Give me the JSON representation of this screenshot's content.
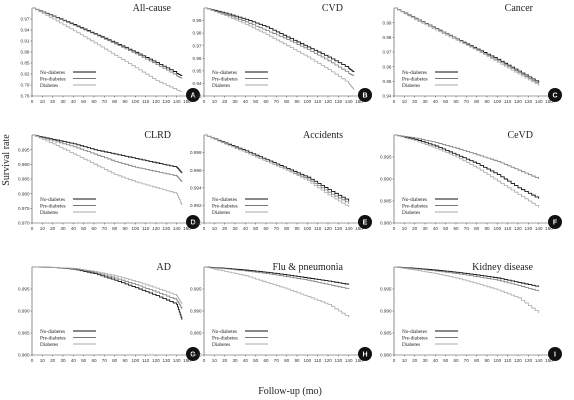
{
  "figure": {
    "ylabel": "Survival rate",
    "xlabel": "Follow-up (mo)"
  },
  "colors": {
    "no_diabetes": "#111111",
    "pre_diabetes": "#777777",
    "diabetes": "#a8a8a8",
    "badge": "#111111",
    "axis": "#444444"
  },
  "chart_data": [
    {
      "type": "line",
      "letter": "A",
      "title": "All-cause",
      "xlim": [
        0,
        150
      ],
      "xticks": [
        0,
        10,
        20,
        30,
        40,
        50,
        60,
        70,
        80,
        90,
        100,
        110,
        120,
        130,
        140,
        150
      ],
      "ylim": [
        0.76,
        1.0
      ],
      "yticks": [
        "0.97",
        "0.94",
        "0.91",
        "0.88",
        "0.85",
        "0.82",
        "0.79",
        "0.76"
      ],
      "ytick_values": [
        0.97,
        0.94,
        0.91,
        0.88,
        0.85,
        0.82,
        0.79,
        0.76
      ],
      "legend": [
        "No-diabetes",
        "Pre-diabetes",
        "Diabetes"
      ],
      "series": [
        {
          "name": "No-diabetes",
          "x": [
            0,
            20,
            40,
            60,
            80,
            100,
            120,
            140,
            145
          ],
          "y": [
            1.0,
            0.978,
            0.955,
            0.93,
            0.905,
            0.879,
            0.851,
            0.822,
            0.815
          ]
        },
        {
          "name": "Pre-diabetes",
          "x": [
            0,
            20,
            40,
            60,
            80,
            100,
            120,
            140,
            145
          ],
          "y": [
            1.0,
            0.977,
            0.953,
            0.928,
            0.902,
            0.875,
            0.846,
            0.815,
            0.808
          ]
        },
        {
          "name": "Diabetes",
          "x": [
            0,
            20,
            40,
            60,
            80,
            100,
            120,
            140,
            145
          ],
          "y": [
            1.0,
            0.97,
            0.938,
            0.905,
            0.871,
            0.837,
            0.802,
            0.776,
            0.772
          ]
        }
      ]
    },
    {
      "type": "line",
      "letter": "B",
      "title": "CVD",
      "xlim": [
        0,
        150
      ],
      "xticks": [
        0,
        10,
        20,
        30,
        40,
        50,
        60,
        70,
        80,
        90,
        100,
        110,
        120,
        130,
        140,
        150
      ],
      "ylim": [
        0.93,
        1.0
      ],
      "yticks": [
        "0.99",
        "0.98",
        "0.97",
        "0.96",
        "0.95",
        "0.94",
        "0.93"
      ],
      "ytick_values": [
        0.99,
        0.98,
        0.97,
        0.96,
        0.95,
        0.94,
        0.93
      ],
      "legend": [
        "No-diabetes",
        "Pre-diabetes",
        "Diabetes"
      ],
      "series": [
        {
          "name": "No-diabetes",
          "x": [
            0,
            20,
            40,
            60,
            80,
            100,
            120,
            140,
            145
          ],
          "y": [
            1.0,
            0.996,
            0.991,
            0.985,
            0.977,
            0.969,
            0.961,
            0.952,
            0.949
          ]
        },
        {
          "name": "Pre-diabetes",
          "x": [
            0,
            20,
            40,
            60,
            80,
            100,
            120,
            140,
            145
          ],
          "y": [
            1.0,
            0.995,
            0.989,
            0.982,
            0.975,
            0.967,
            0.958,
            0.948,
            0.946
          ]
        },
        {
          "name": "Diabetes",
          "x": [
            0,
            20,
            40,
            60,
            80,
            100,
            120,
            140,
            145
          ],
          "y": [
            1.0,
            0.994,
            0.987,
            0.979,
            0.97,
            0.961,
            0.951,
            0.94,
            0.935
          ]
        }
      ]
    },
    {
      "type": "line",
      "letter": "C",
      "title": "Cancer",
      "xlim": [
        0,
        150
      ],
      "xticks": [
        0,
        10,
        20,
        30,
        40,
        50,
        60,
        70,
        80,
        90,
        100,
        110,
        120,
        130,
        140,
        150
      ],
      "ylim": [
        0.94,
        1.0
      ],
      "yticks": [
        "0.99",
        "0.98",
        "0.97",
        "0.96",
        "0.95",
        "0.94"
      ],
      "ytick_values": [
        0.99,
        0.98,
        0.97,
        0.96,
        0.95,
        0.94
      ],
      "legend": [
        "No-diabetes",
        "Pre-diabetes",
        "Diabetes"
      ],
      "series": [
        {
          "name": "No-diabetes",
          "x": [
            0,
            20,
            40,
            60,
            80,
            100,
            120,
            140
          ],
          "y": [
            1.0,
            0.993,
            0.986,
            0.979,
            0.972,
            0.965,
            0.957,
            0.949
          ]
        },
        {
          "name": "Pre-diabetes",
          "x": [
            0,
            20,
            40,
            60,
            80,
            100,
            120,
            140
          ],
          "y": [
            1.0,
            0.993,
            0.986,
            0.979,
            0.971,
            0.964,
            0.956,
            0.948
          ]
        },
        {
          "name": "Diabetes",
          "x": [
            0,
            20,
            40,
            60,
            80,
            100,
            120,
            140
          ],
          "y": [
            1.0,
            0.992,
            0.985,
            0.978,
            0.971,
            0.963,
            0.955,
            0.947
          ]
        }
      ]
    },
    {
      "type": "line",
      "letter": "D",
      "title": "CLRD",
      "xlim": [
        0,
        150
      ],
      "xticks": [
        0,
        10,
        20,
        30,
        40,
        50,
        60,
        70,
        80,
        90,
        100,
        110,
        120,
        130,
        140,
        150
      ],
      "ylim": [
        0.97,
        1.0
      ],
      "yticks": [
        "0.995",
        "0.990",
        "0.985",
        "0.980",
        "0.975",
        "0.970"
      ],
      "ytick_values": [
        0.995,
        0.99,
        0.985,
        0.98,
        0.975,
        0.97
      ],
      "legend": [
        "No-diabetes",
        "Pre-diabetes",
        "Diabetes"
      ],
      "series": [
        {
          "name": "No-diabetes",
          "x": [
            0,
            20,
            40,
            60,
            80,
            100,
            120,
            140,
            145
          ],
          "y": [
            1.0,
            0.9985,
            0.997,
            0.995,
            0.9935,
            0.992,
            0.9905,
            0.989,
            0.987
          ]
        },
        {
          "name": "Pre-diabetes",
          "x": [
            0,
            20,
            40,
            60,
            80,
            100,
            120,
            140,
            145
          ],
          "y": [
            1.0,
            0.998,
            0.996,
            0.9935,
            0.991,
            0.989,
            0.9875,
            0.986,
            0.984
          ]
        },
        {
          "name": "Diabetes",
          "x": [
            0,
            20,
            40,
            60,
            80,
            100,
            120,
            140,
            145
          ],
          "y": [
            1.0,
            0.997,
            0.9935,
            0.99,
            0.9865,
            0.984,
            0.982,
            0.98,
            0.976
          ]
        }
      ]
    },
    {
      "type": "line",
      "letter": "E",
      "title": "Accidents",
      "xlim": [
        0,
        150
      ],
      "xticks": [
        0,
        10,
        20,
        30,
        40,
        50,
        60,
        70,
        80,
        90,
        100,
        110,
        120,
        130,
        140,
        150
      ],
      "ylim": [
        0.99,
        1.0
      ],
      "yticks": [
        "0.998",
        "0.996",
        "0.994",
        "0.992",
        "0.990"
      ],
      "ytick_values": [
        0.998,
        0.996,
        0.994,
        0.992,
        0.99
      ],
      "legend": [
        "No-diabetes",
        "Pre-diabetes",
        "Diabetes"
      ],
      "series": [
        {
          "name": "No-diabetes",
          "x": [
            0,
            20,
            40,
            60,
            80,
            100,
            120,
            140
          ],
          "y": [
            1.0,
            0.9991,
            0.9982,
            0.9972,
            0.9962,
            0.9952,
            0.9938,
            0.9925
          ]
        },
        {
          "name": "Pre-diabetes",
          "x": [
            0,
            20,
            40,
            60,
            80,
            100,
            120,
            140
          ],
          "y": [
            1.0,
            0.999,
            0.998,
            0.997,
            0.996,
            0.995,
            0.9935,
            0.9922
          ]
        },
        {
          "name": "Diabetes",
          "x": [
            0,
            20,
            40,
            60,
            80,
            100,
            120,
            140
          ],
          "y": [
            1.0,
            0.999,
            0.998,
            0.997,
            0.996,
            0.9948,
            0.9932,
            0.9918
          ]
        }
      ]
    },
    {
      "type": "line",
      "letter": "F",
      "title": "CeVD",
      "xlim": [
        0,
        150
      ],
      "xticks": [
        0,
        10,
        20,
        30,
        40,
        50,
        60,
        70,
        80,
        90,
        100,
        110,
        120,
        130,
        140,
        150
      ],
      "ylim": [
        0.98,
        1.0
      ],
      "yticks": [
        "0.995",
        "0.990",
        "0.985",
        "0.980"
      ],
      "ytick_values": [
        0.995,
        0.99,
        0.985,
        0.98
      ],
      "legend": [
        "No-diabetes",
        "Pre-diabetes",
        "Diabetes"
      ],
      "series": [
        {
          "name": "No-diabetes",
          "x": [
            0,
            20,
            40,
            60,
            80,
            100,
            120,
            140
          ],
          "y": [
            1.0,
            0.999,
            0.9975,
            0.9955,
            0.9935,
            0.991,
            0.988,
            0.9855
          ]
        },
        {
          "name": "Pre-diabetes",
          "x": [
            0,
            20,
            40,
            60,
            80,
            100,
            120,
            140
          ],
          "y": [
            1.0,
            0.9993,
            0.9983,
            0.997,
            0.9955,
            0.994,
            0.992,
            0.99
          ]
        },
        {
          "name": "Diabetes",
          "x": [
            0,
            20,
            40,
            60,
            80,
            100,
            120,
            140
          ],
          "y": [
            1.0,
            0.9987,
            0.997,
            0.995,
            0.9925,
            0.9895,
            0.9865,
            0.9835
          ]
        }
      ]
    },
    {
      "type": "line",
      "letter": "G",
      "title": "AD",
      "xlim": [
        0,
        150
      ],
      "xticks": [
        0,
        10,
        20,
        30,
        40,
        50,
        60,
        70,
        80,
        90,
        100,
        110,
        120,
        130,
        140,
        150
      ],
      "ylim": [
        0.98,
        1.0
      ],
      "yticks": [
        "0.995",
        "0.990",
        "0.985",
        "0.980"
      ],
      "ytick_values": [
        0.995,
        0.99,
        0.985,
        0.98
      ],
      "legend": [
        "No-diabetes",
        "Pre-diabetes",
        "Diabetes"
      ],
      "series": [
        {
          "name": "No-diabetes",
          "x": [
            0,
            20,
            40,
            60,
            80,
            100,
            120,
            140,
            145
          ],
          "y": [
            1.0,
            0.9999,
            0.9995,
            0.9985,
            0.997,
            0.9953,
            0.9935,
            0.9915,
            0.988
          ]
        },
        {
          "name": "Pre-diabetes",
          "x": [
            0,
            20,
            40,
            60,
            80,
            100,
            120,
            140,
            145
          ],
          "y": [
            1.0,
            0.9999,
            0.9996,
            0.9988,
            0.9975,
            0.996,
            0.9943,
            0.9925,
            0.9905
          ]
        },
        {
          "name": "Diabetes",
          "x": [
            0,
            20,
            40,
            60,
            80,
            100,
            120,
            140,
            145
          ],
          "y": [
            1.0,
            0.9999,
            0.9997,
            0.999,
            0.998,
            0.9967,
            0.9952,
            0.9935,
            0.9915
          ]
        }
      ]
    },
    {
      "type": "line",
      "letter": "H",
      "title": "Flu & pneumonia",
      "xlim": [
        0,
        150
      ],
      "xticks": [
        0,
        10,
        20,
        30,
        40,
        50,
        60,
        70,
        80,
        90,
        100,
        110,
        120,
        130,
        140,
        150
      ],
      "ylim": [
        0.98,
        1.0
      ],
      "yticks": [
        "0.995",
        "0.990",
        "0.985",
        "0.980"
      ],
      "ytick_values": [
        0.995,
        0.99,
        0.985,
        0.98
      ],
      "legend": [
        "No-diabetes",
        "Pre-diabetes",
        "Diabetes"
      ],
      "series": [
        {
          "name": "No-diabetes",
          "x": [
            0,
            20,
            40,
            60,
            80,
            100,
            120,
            140
          ],
          "y": [
            1.0,
            0.9997,
            0.9993,
            0.9988,
            0.9982,
            0.9975,
            0.9968,
            0.996
          ]
        },
        {
          "name": "Pre-diabetes",
          "x": [
            0,
            20,
            40,
            60,
            80,
            100,
            120,
            140
          ],
          "y": [
            1.0,
            0.9996,
            0.9991,
            0.9985,
            0.9978,
            0.997,
            0.996,
            0.995
          ]
        },
        {
          "name": "Diabetes",
          "x": [
            0,
            20,
            40,
            60,
            80,
            100,
            120,
            140
          ],
          "y": [
            1.0,
            0.999,
            0.998,
            0.9965,
            0.995,
            0.9933,
            0.9915,
            0.9885
          ]
        }
      ]
    },
    {
      "type": "line",
      "letter": "I",
      "title": "Kidney disease",
      "xlim": [
        0,
        150
      ],
      "xticks": [
        0,
        10,
        20,
        30,
        40,
        50,
        60,
        70,
        80,
        90,
        100,
        110,
        120,
        130,
        140,
        150
      ],
      "ylim": [
        0.98,
        1.0
      ],
      "yticks": [
        "0.995",
        "0.990",
        "0.985",
        "0.980"
      ],
      "ytick_values": [
        0.995,
        0.99,
        0.985,
        0.98
      ],
      "legend": [
        "No-diabetes",
        "Pre-diabetes",
        "Diabetes"
      ],
      "series": [
        {
          "name": "No-diabetes",
          "x": [
            0,
            20,
            40,
            60,
            80,
            100,
            120,
            140
          ],
          "y": [
            1.0,
            0.9997,
            0.9993,
            0.9988,
            0.9982,
            0.9975,
            0.9965,
            0.9955
          ]
        },
        {
          "name": "Pre-diabetes",
          "x": [
            0,
            20,
            40,
            60,
            80,
            100,
            120,
            140
          ],
          "y": [
            1.0,
            0.9996,
            0.9991,
            0.9985,
            0.9978,
            0.997,
            0.9958,
            0.9945
          ]
        },
        {
          "name": "Diabetes",
          "x": [
            0,
            20,
            40,
            60,
            80,
            100,
            120,
            140
          ],
          "y": [
            1.0,
            0.9993,
            0.9985,
            0.9975,
            0.9962,
            0.9948,
            0.993,
            0.9895
          ]
        }
      ]
    }
  ]
}
